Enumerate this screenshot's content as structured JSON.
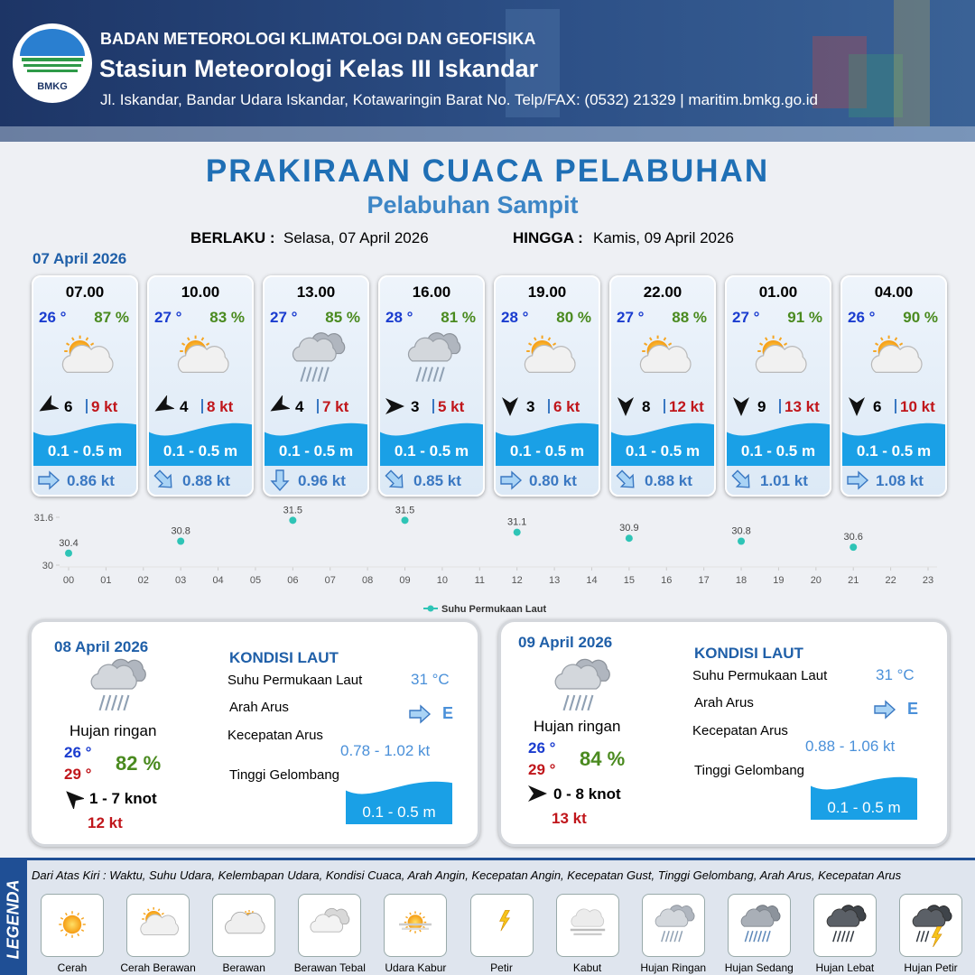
{
  "header": {
    "logo": "BMKG",
    "agency": "BADAN METEOROLOGI KLIMATOLOGI DAN GEOFISIKA",
    "station": "Stasiun Meteorologi Kelas III Iskandar",
    "address": "Jl. Iskandar, Bandar Udara Iskandar, Kotawaringin Barat No. Telp/FAX: (0532) 21329 | maritim.bmkg.go.id"
  },
  "title": "PRAKIRAAN CUACA PELABUHAN",
  "subtitle": "Pelabuhan Sampit",
  "validity": {
    "from_label": "BERLAKU :",
    "from": "Selasa, 07 April 2026",
    "to_label": "HINGGA :",
    "to": "Kamis, 09 April 2026"
  },
  "today": {
    "date": "07 April 2026",
    "slots": [
      {
        "time": "07.00",
        "temp": "26 °",
        "humidity": "87 %",
        "wind": "6",
        "gust": "9 kt",
        "wave": "0.1 - 0.5 m",
        "current": "0.86 kt"
      },
      {
        "time": "10.00",
        "temp": "27 °",
        "humidity": "83 %",
        "wind": "4",
        "gust": "8 kt",
        "wave": "0.1 - 0.5 m",
        "current": "0.88 kt"
      },
      {
        "time": "13.00",
        "temp": "27 °",
        "humidity": "85 %",
        "wind": "4",
        "gust": "7 kt",
        "wave": "0.1 - 0.5 m",
        "current": "0.96 kt"
      },
      {
        "time": "16.00",
        "temp": "28 °",
        "humidity": "81 %",
        "wind": "3",
        "gust": "5 kt",
        "wave": "0.1 - 0.5 m",
        "current": "0.85 kt"
      },
      {
        "time": "19.00",
        "temp": "28 °",
        "humidity": "80 %",
        "wind": "3",
        "gust": "6 kt",
        "wave": "0.1 - 0.5 m",
        "current": "0.80 kt"
      },
      {
        "time": "22.00",
        "temp": "27 °",
        "humidity": "88 %",
        "wind": "8",
        "gust": "12 kt",
        "wave": "0.1 - 0.5 m",
        "current": "0.88 kt"
      },
      {
        "time": "01.00",
        "temp": "27 °",
        "humidity": "91 %",
        "wind": "9",
        "gust": "13 kt",
        "wave": "0.1 - 0.5 m",
        "current": "1.01 kt"
      },
      {
        "time": "04.00",
        "temp": "26 °",
        "humidity": "90 %",
        "wind": "6",
        "gust": "10 kt",
        "wave": "0.1 - 0.5 m",
        "current": "1.08 kt"
      }
    ]
  },
  "chart_data": {
    "type": "scatter",
    "x": [
      0,
      3,
      6,
      9,
      12,
      15,
      18,
      21
    ],
    "series": [
      {
        "name": "Suhu Permukaan Laut",
        "color": "#2ec4b6",
        "values": [
          30.4,
          30.8,
          31.5,
          31.5,
          31.1,
          30.9,
          30.8,
          30.6
        ]
      }
    ],
    "xlim": [
      0,
      23
    ],
    "xticks": [
      {
        "value": 0,
        "label": "00"
      },
      {
        "value": 1,
        "label": "01"
      },
      {
        "value": 2,
        "label": "02"
      },
      {
        "value": 3,
        "label": "03"
      },
      {
        "value": 4,
        "label": "04"
      },
      {
        "value": 5,
        "label": "05"
      },
      {
        "value": 6,
        "label": "06"
      },
      {
        "value": 7,
        "label": "07"
      },
      {
        "value": 8,
        "label": "08"
      },
      {
        "value": 9,
        "label": "09"
      },
      10,
      11,
      12,
      13,
      14,
      15,
      16,
      17,
      18,
      19,
      20,
      21,
      22,
      23
    ],
    "ylim": [
      30,
      31.6
    ],
    "yticks": [
      30,
      31.6
    ],
    "legend": "bottom"
  },
  "forecast_days": [
    {
      "date": "08 April 2026",
      "condition": "Hujan ringan",
      "temp_min": "26 °",
      "temp_max": "29 °",
      "humidity": "82 %",
      "wind": "1 - 7 knot",
      "gust": "12 kt",
      "sea_label": "KONDISI LAUT",
      "sst_label": "Suhu Permukaan Laut",
      "sst": "31 °C",
      "dir_label": "Arah Arus",
      "dir": "E",
      "speed_label": "Kecepatan Arus",
      "speed": "0.78 - 1.02 kt",
      "wave_label": "Tinggi Gelombang",
      "wave": "0.1 - 0.5 m"
    },
    {
      "date": "09 April 2026",
      "condition": "Hujan ringan",
      "temp_min": "26 °",
      "temp_max": "29 °",
      "humidity": "84 %",
      "wind": "0 - 8 knot",
      "gust": "13 kt",
      "sea_label": "KONDISI LAUT",
      "sst_label": "Suhu Permukaan Laut",
      "sst": "31 °C",
      "dir_label": "Arah Arus",
      "dir": "E",
      "speed_label": "Kecepatan Arus",
      "speed": "0.88 - 1.06 kt",
      "wave_label": "Tinggi Gelombang",
      "wave": "0.1 - 0.5 m"
    }
  ],
  "legend": {
    "title": "LEGENDA",
    "description": "Dari Atas Kiri : Waktu, Suhu Udara, Kelembapan Udara, Kondisi Cuaca, Arah Angin, Kecepatan Angin, Kecepatan Gust, Tinggi Gelombang, Arah Arus, Kecepatan Arus",
    "items": [
      "Cerah",
      "Cerah Berawan",
      "Berawan",
      "Berawan Tebal",
      "Udara Kabur",
      "Petir",
      "Kabut",
      "Hujan Ringan",
      "Hujan Sedang",
      "Hujan Lebat",
      "Hujan Petir"
    ]
  }
}
